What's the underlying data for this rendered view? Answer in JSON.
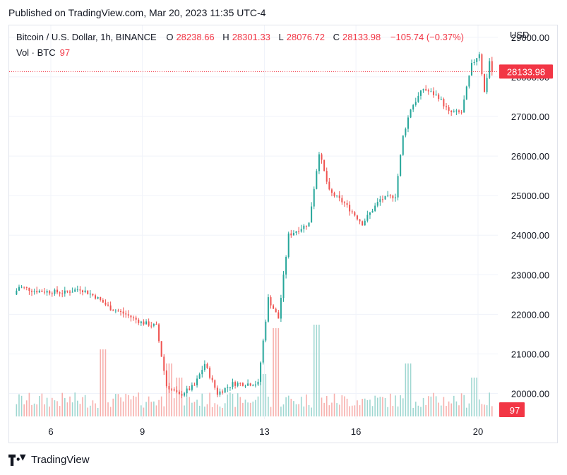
{
  "header": {
    "published": "Published on TradingView.com, Mar 20, 2023 11:35 UTC-4"
  },
  "legend": {
    "symbol": "Bitcoin / U.S. Dollar, 1h, BINANCE",
    "o_label": "O",
    "o": "28238.66",
    "h_label": "H",
    "h": "28301.33",
    "l_label": "L",
    "l": "28076.72",
    "c_label": "C",
    "c": "28133.98",
    "change": "−105.74 (−0.37%)",
    "vol_label": "Vol · BTC",
    "vol_value": "97"
  },
  "axis": {
    "currency": "USD",
    "price_badge": "28133.98",
    "volume_badge": "97"
  },
  "footer": {
    "brand": "TradingView"
  },
  "colors": {
    "up": "#26a69a",
    "down": "#ef5350",
    "badge": "#f23645",
    "grid": "#f0f3fa"
  },
  "chart_data": {
    "type": "candlestick",
    "title": "Bitcoin / U.S. Dollar, 1h, BINANCE",
    "ylabel": "USD",
    "ylim": [
      19350,
      29300
    ],
    "yticks": [
      20000,
      21000,
      22000,
      23000,
      24000,
      25000,
      26000,
      27000,
      28000,
      29000
    ],
    "ytick_labels": [
      "20000.00",
      "21000.00",
      "22000.00",
      "23000.00",
      "24000.00",
      "25000.00",
      "26000.00",
      "27000.00",
      "28000.00",
      "29000.00"
    ],
    "xticks": [
      {
        "label": "6",
        "date": "Mar 6"
      },
      {
        "label": "9",
        "date": "Mar 9"
      },
      {
        "label": "13",
        "date": "Mar 13"
      },
      {
        "label": "16",
        "date": "Mar 16"
      },
      {
        "label": "20",
        "date": "Mar 20"
      }
    ],
    "last_price": 28133.98,
    "price_keypoints": [
      {
        "date": "Mar 4 20:00",
        "price": 22500
      },
      {
        "date": "Mar 5 00:00",
        "price": 22700
      },
      {
        "date": "Mar 5 12:00",
        "price": 22600
      },
      {
        "date": "Mar 6 12:00",
        "price": 22550
      },
      {
        "date": "Mar 7 00:00",
        "price": 22650
      },
      {
        "date": "Mar 7 12:00",
        "price": 22450
      },
      {
        "date": "Mar 8 00:00",
        "price": 22150
      },
      {
        "date": "Mar 8 12:00",
        "price": 22000
      },
      {
        "date": "Mar 9 00:00",
        "price": 21800
      },
      {
        "date": "Mar 9 12:00",
        "price": 21700
      },
      {
        "date": "Mar 9 20:00",
        "price": 20200
      },
      {
        "date": "Mar 10 06:00",
        "price": 19950
      },
      {
        "date": "Mar 10 18:00",
        "price": 20200
      },
      {
        "date": "Mar 11 02:00",
        "price": 20750
      },
      {
        "date": "Mar 11 12:00",
        "price": 20000
      },
      {
        "date": "Mar 12 00:00",
        "price": 20250
      },
      {
        "date": "Mar 12 20:00",
        "price": 20250
      },
      {
        "date": "Mar 13 04:00",
        "price": 22400
      },
      {
        "date": "Mar 13 12:00",
        "price": 21900
      },
      {
        "date": "Mar 13 20:00",
        "price": 24000
      },
      {
        "date": "Mar 14 12:00",
        "price": 24300
      },
      {
        "date": "Mar 14 20:00",
        "price": 26100
      },
      {
        "date": "Mar 15 04:00",
        "price": 25100
      },
      {
        "date": "Mar 15 16:00",
        "price": 24800
      },
      {
        "date": "Mar 16 06:00",
        "price": 24300
      },
      {
        "date": "Mar 16 20:00",
        "price": 24900
      },
      {
        "date": "Mar 17 08:00",
        "price": 25000
      },
      {
        "date": "Mar 17 14:00",
        "price": 26500
      },
      {
        "date": "Mar 17 20:00",
        "price": 27200
      },
      {
        "date": "Mar 18 06:00",
        "price": 27700
      },
      {
        "date": "Mar 18 18:00",
        "price": 27500
      },
      {
        "date": "Mar 19 02:00",
        "price": 27100
      },
      {
        "date": "Mar 19 12:00",
        "price": 27100
      },
      {
        "date": "Mar 19 20:00",
        "price": 28300
      },
      {
        "date": "Mar 20 02:00",
        "price": 28600
      },
      {
        "date": "Mar 20 06:00",
        "price": 27600
      },
      {
        "date": "Mar 20 11:00",
        "price": 28600
      },
      {
        "date": "Mar 20 11:35",
        "price": 28133.98
      }
    ],
    "volume_spikes_btc_relative": [
      {
        "date": "Mar 7 16:00",
        "rel": 0.95
      },
      {
        "date": "Mar 9 20:00",
        "rel": 0.75
      },
      {
        "date": "Mar 10 04:00",
        "rel": 0.55
      },
      {
        "date": "Mar 12 22:00",
        "rel": 0.6
      },
      {
        "date": "Mar 13 08:00",
        "rel": 1.25
      },
      {
        "date": "Mar 14 16:00",
        "rel": 1.3
      },
      {
        "date": "Mar 17 16:00",
        "rel": 0.75
      },
      {
        "date": "Mar 19 20:00",
        "rel": 0.55
      }
    ],
    "last_volume": 97
  }
}
